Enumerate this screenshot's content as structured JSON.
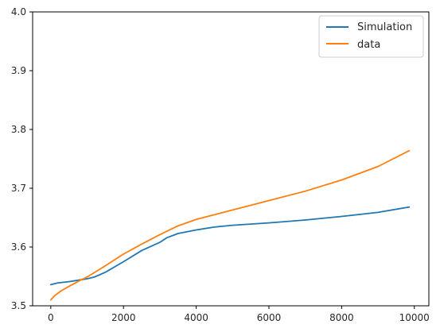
{
  "chart_data": {
    "type": "line",
    "title": "",
    "xlabel": "",
    "ylabel": "",
    "xlim": [
      -500,
      10400
    ],
    "ylim": [
      3.5,
      4.0
    ],
    "xticks": [
      0,
      2000,
      4000,
      6000,
      8000,
      10000
    ],
    "yticks": [
      3.5,
      3.6,
      3.7,
      3.8,
      3.9,
      4.0
    ],
    "xtick_labels": [
      "0",
      "2000",
      "4000",
      "6000",
      "8000",
      "10000"
    ],
    "ytick_labels": [
      "3.5",
      "3.6",
      "3.7",
      "3.8",
      "3.9",
      "4.0"
    ],
    "grid": false,
    "legend_position": "top-right",
    "series": [
      {
        "name": "Simulation",
        "color": "#1f77b4",
        "x": [
          0,
          200,
          500,
          800,
          1000,
          1200,
          1500,
          2000,
          2500,
          3000,
          3200,
          3500,
          4000,
          4500,
          5000,
          6000,
          7000,
          8000,
          9000,
          9860
        ],
        "y": [
          3.536,
          3.539,
          3.541,
          3.544,
          3.546,
          3.549,
          3.557,
          3.575,
          3.594,
          3.608,
          3.616,
          3.623,
          3.629,
          3.634,
          3.637,
          3.641,
          3.646,
          3.652,
          3.659,
          3.668
        ]
      },
      {
        "name": "data",
        "color": "#ff7f0e",
        "x": [
          0,
          100,
          300,
          500,
          800,
          1000,
          1500,
          2000,
          2500,
          3000,
          3500,
          4000,
          5000,
          6000,
          7000,
          8000,
          9000,
          9860
        ],
        "y": [
          3.51,
          3.517,
          3.526,
          3.533,
          3.543,
          3.549,
          3.568,
          3.588,
          3.605,
          3.621,
          3.636,
          3.647,
          3.663,
          3.679,
          3.695,
          3.714,
          3.737,
          3.764
        ]
      }
    ]
  }
}
